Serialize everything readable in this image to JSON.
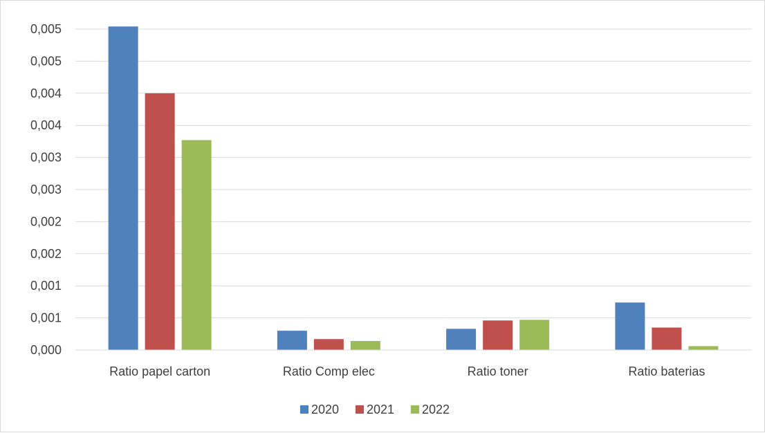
{
  "chart_data": {
    "type": "bar",
    "categories": [
      "Ratio papel carton",
      "Ratio Comp elec",
      "Ratio toner",
      "Ratio baterias"
    ],
    "series": [
      {
        "name": "2020",
        "color": "#4f81bd",
        "values": [
          0.00504,
          0.0003,
          0.00033,
          0.00074
        ]
      },
      {
        "name": "2021",
        "color": "#c0504d",
        "values": [
          0.004,
          0.00017,
          0.00046,
          0.00035
        ]
      },
      {
        "name": "2022",
        "color": "#9bbb59",
        "values": [
          0.00327,
          0.00014,
          0.00047,
          6e-05
        ]
      }
    ],
    "yticks": [
      "0,000",
      "0,001",
      "0,001",
      "0,002",
      "0,002",
      "0,003",
      "0,003",
      "0,004",
      "0,004",
      "0,005",
      "0,005"
    ],
    "ylim": [
      0,
      0.005
    ],
    "grid": true,
    "legend_position": "bottom"
  }
}
